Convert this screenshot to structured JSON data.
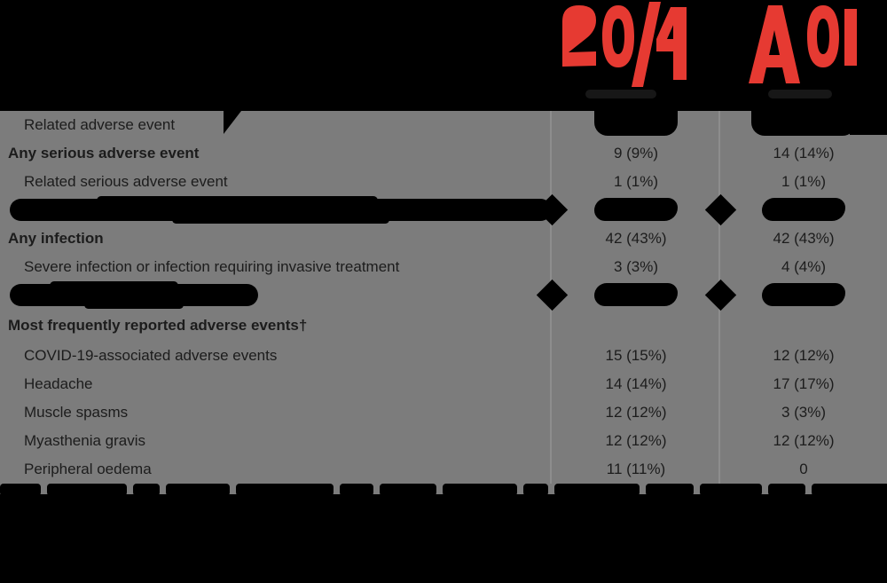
{
  "colors": {
    "background": "#000000",
    "panel": "#7c7c7c",
    "text": "#1c1c1c",
    "accent_red": "#e63a32",
    "divider": "#9a9a9a"
  },
  "header": {
    "graphics": [
      {
        "name": "red-figure-left"
      },
      {
        "name": "red-figure-right"
      }
    ]
  },
  "table": {
    "rows": [
      {
        "label": "Related adverse event",
        "indent": true,
        "values_redacted": true
      },
      {
        "label": "Any serious adverse event",
        "bold": true,
        "values": [
          "9 (9%)",
          "14 (14%)"
        ]
      },
      {
        "label": "Related serious adverse event",
        "indent": true,
        "values": [
          "1 (1%)",
          "1 (1%)"
        ]
      },
      {
        "label_redacted": true,
        "values_redacted": true,
        "diamonds": true
      },
      {
        "label": "Any infection",
        "bold": true,
        "values": [
          "42 (43%)",
          "42 (43%)"
        ]
      },
      {
        "label": "Severe infection or infection requiring invasive treatment",
        "indent": true,
        "values": [
          "3 (3%)",
          "4 (4%)"
        ]
      },
      {
        "label_redacted": true,
        "values_redacted": true,
        "diamonds": true
      },
      {
        "label": "Most frequently reported adverse events†",
        "bold": true,
        "section": true
      },
      {
        "label": "COVID-19-associated adverse events",
        "indent": true,
        "values": [
          "15 (15%)",
          "12 (12%)"
        ]
      },
      {
        "label": "Headache",
        "indent": true,
        "values": [
          "14 (14%)",
          "17 (17%)"
        ]
      },
      {
        "label": "Muscle spasms",
        "indent": true,
        "values": [
          "12 (12%)",
          "3 (3%)"
        ]
      },
      {
        "label": "Myasthenia gravis",
        "indent": true,
        "values": [
          "12 (12%)",
          "12 (12%)"
        ]
      },
      {
        "label": "Peripheral oedema",
        "indent": true,
        "values": [
          "11 (11%)",
          "0"
        ]
      }
    ]
  }
}
